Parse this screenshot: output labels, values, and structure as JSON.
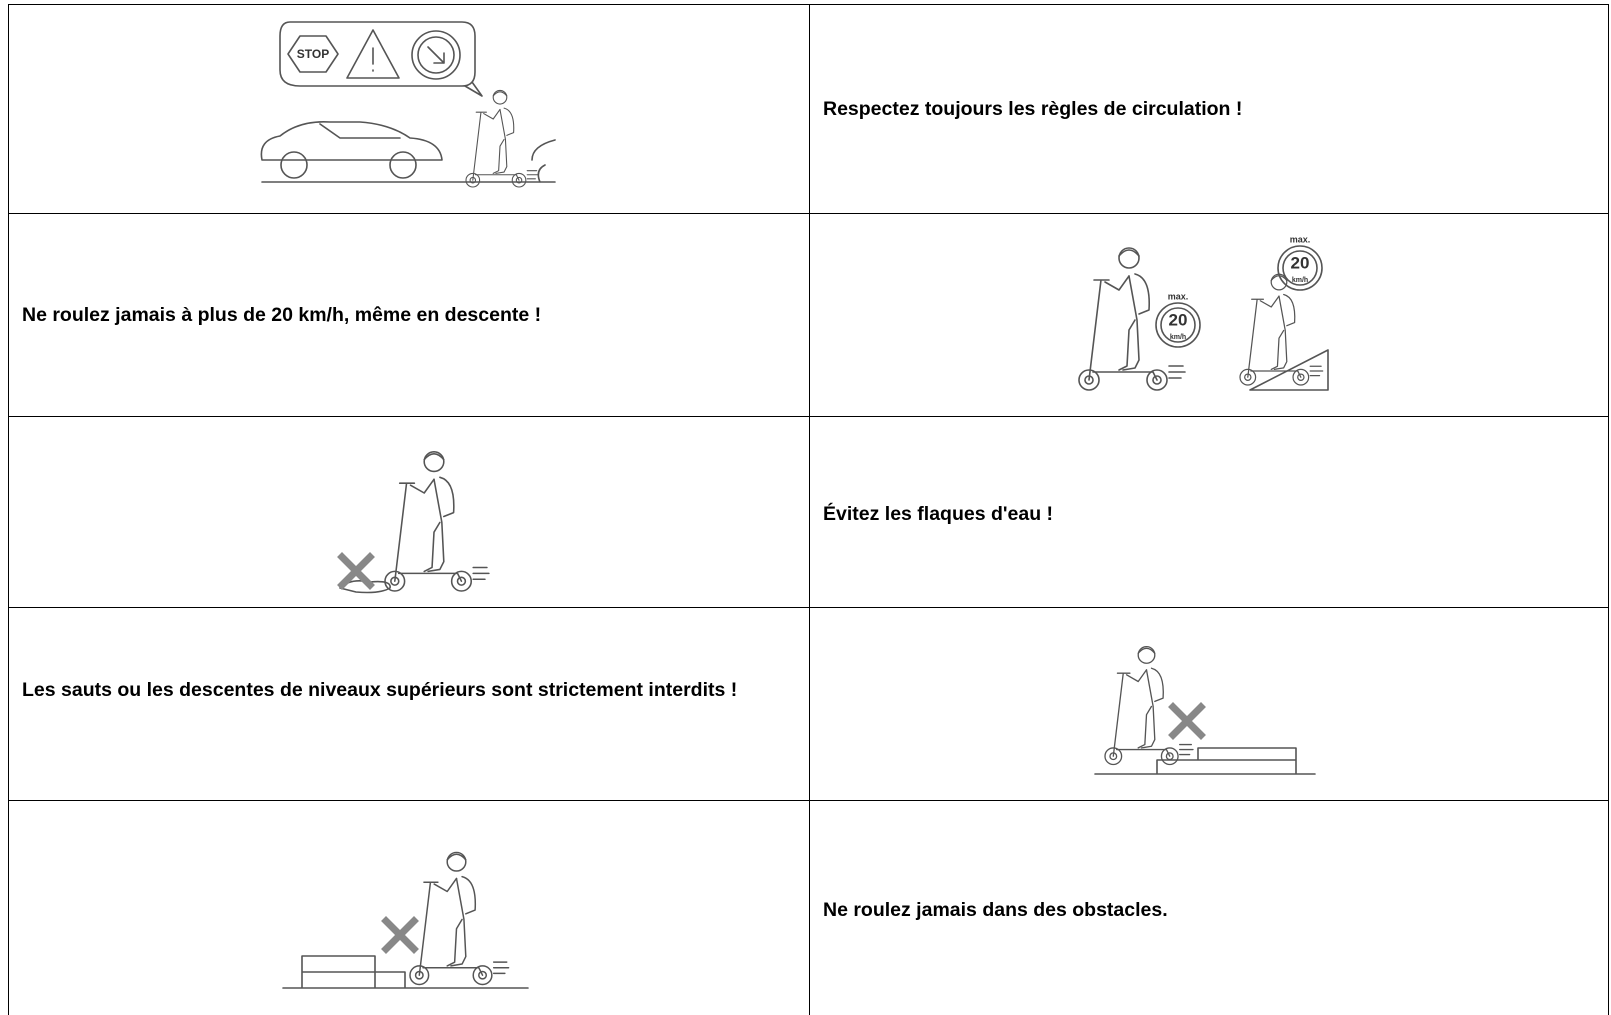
{
  "rows": [
    {
      "text": "Respectez toujours les règles de circulation !",
      "sign_text": "STOP"
    },
    {
      "text": "Ne roulez jamais à plus de 20 km/h, même en descente !",
      "speed_sign": {
        "label": "max.",
        "value": 20,
        "unit": "km/h"
      }
    },
    {
      "text": "Évitez les flaques d'eau !"
    },
    {
      "text": "Les sauts ou les descentes de niveaux supérieurs sont strictement interdits !"
    },
    {
      "text": "Ne roulez jamais dans des obstacles."
    }
  ]
}
